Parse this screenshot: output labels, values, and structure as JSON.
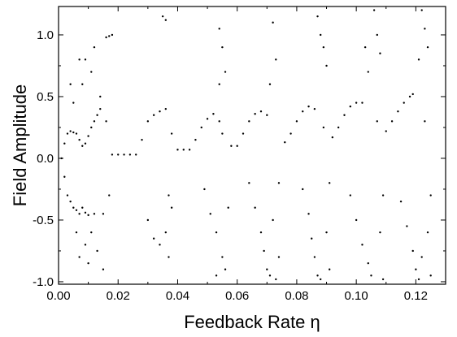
{
  "chart_data": {
    "type": "scatter",
    "title": "",
    "xlabel": "Feedback Rate η",
    "ylabel": "Field Amplitude",
    "xlim": [
      0.0,
      0.13
    ],
    "ylim": [
      -1.02,
      1.23
    ],
    "x_ticks": [
      "0.00",
      "0.02",
      "0.04",
      "0.06",
      "0.08",
      "0.10",
      "0.12"
    ],
    "x_tick_values": [
      0.0,
      0.02,
      0.04,
      0.06,
      0.08,
      0.1,
      0.12
    ],
    "y_ticks": [
      "-1.0",
      "-0.5",
      "0.0",
      "0.5",
      "1.0"
    ],
    "y_tick_values": [
      -1.0,
      -0.5,
      0.0,
      0.5,
      1.0
    ],
    "grid": false,
    "legend": "none",
    "marker_color": "#000000",
    "series": [
      {
        "points": [
          [
            0.001,
            0.0
          ],
          [
            0.002,
            0.12
          ],
          [
            0.002,
            -0.15
          ],
          [
            0.003,
            0.2
          ],
          [
            0.003,
            -0.3
          ],
          [
            0.004,
            0.22
          ],
          [
            0.004,
            -0.35
          ],
          [
            0.005,
            0.21
          ],
          [
            0.005,
            -0.4
          ],
          [
            0.006,
            0.2
          ],
          [
            0.006,
            -0.42
          ],
          [
            0.007,
            0.15
          ],
          [
            0.007,
            -0.45
          ],
          [
            0.008,
            0.1
          ],
          [
            0.008,
            -0.4
          ],
          [
            0.009,
            0.12
          ],
          [
            0.009,
            -0.44
          ],
          [
            0.01,
            0.18
          ],
          [
            0.01,
            -0.46
          ],
          [
            0.011,
            0.25
          ],
          [
            0.012,
            0.3
          ],
          [
            0.012,
            -0.45
          ],
          [
            0.013,
            0.35
          ],
          [
            0.014,
            0.4
          ],
          [
            0.015,
            -0.45
          ],
          [
            0.016,
            0.98
          ],
          [
            0.017,
            0.99
          ],
          [
            0.018,
            1.0
          ],
          [
            0.008,
            0.6
          ],
          [
            0.009,
            0.8
          ],
          [
            0.009,
            -0.7
          ],
          [
            0.01,
            -0.85
          ],
          [
            0.011,
            0.7
          ],
          [
            0.011,
            -0.6
          ],
          [
            0.012,
            0.9
          ],
          [
            0.013,
            -0.75
          ],
          [
            0.014,
            0.5
          ],
          [
            0.015,
            -0.9
          ],
          [
            0.016,
            0.3
          ],
          [
            0.017,
            -0.3
          ],
          [
            0.004,
            0.6
          ],
          [
            0.005,
            0.45
          ],
          [
            0.006,
            -0.6
          ],
          [
            0.007,
            0.8
          ],
          [
            0.007,
            -0.8
          ],
          [
            0.018,
            0.03
          ],
          [
            0.02,
            0.03
          ],
          [
            0.022,
            0.03
          ],
          [
            0.024,
            0.03
          ],
          [
            0.026,
            0.03
          ],
          [
            0.028,
            0.15
          ],
          [
            0.03,
            0.3
          ],
          [
            0.032,
            0.35
          ],
          [
            0.034,
            0.38
          ],
          [
            0.036,
            0.4
          ],
          [
            0.03,
            -0.5
          ],
          [
            0.032,
            -0.65
          ],
          [
            0.034,
            -0.7
          ],
          [
            0.036,
            -0.6
          ],
          [
            0.037,
            -0.8
          ],
          [
            0.035,
            1.15
          ],
          [
            0.036,
            1.12
          ],
          [
            0.038,
            -0.4
          ],
          [
            0.038,
            0.2
          ],
          [
            0.037,
            -0.3
          ],
          [
            0.04,
            0.07
          ],
          [
            0.042,
            0.07
          ],
          [
            0.044,
            0.07
          ],
          [
            0.046,
            0.15
          ],
          [
            0.048,
            0.25
          ],
          [
            0.05,
            0.32
          ],
          [
            0.052,
            0.36
          ],
          [
            0.054,
            0.3
          ],
          [
            0.049,
            -0.25
          ],
          [
            0.051,
            -0.45
          ],
          [
            0.053,
            -0.6
          ],
          [
            0.055,
            -0.8
          ],
          [
            0.054,
            1.05
          ],
          [
            0.055,
            0.9
          ],
          [
            0.056,
            0.7
          ],
          [
            0.056,
            -0.9
          ],
          [
            0.057,
            -0.4
          ],
          [
            0.055,
            0.2
          ],
          [
            0.053,
            -0.95
          ],
          [
            0.054,
            0.6
          ],
          [
            0.058,
            0.1
          ],
          [
            0.06,
            0.1
          ],
          [
            0.062,
            0.2
          ],
          [
            0.064,
            0.3
          ],
          [
            0.066,
            0.36
          ],
          [
            0.068,
            0.38
          ],
          [
            0.07,
            0.35
          ],
          [
            0.064,
            -0.2
          ],
          [
            0.066,
            -0.4
          ],
          [
            0.068,
            -0.6
          ],
          [
            0.069,
            -0.75
          ],
          [
            0.071,
            -0.95
          ],
          [
            0.072,
            1.1
          ],
          [
            0.073,
            0.8
          ],
          [
            0.074,
            -0.2
          ],
          [
            0.074,
            -0.8
          ],
          [
            0.072,
            -0.5
          ],
          [
            0.073,
            -0.98
          ],
          [
            0.071,
            0.6
          ],
          [
            0.07,
            -0.9
          ],
          [
            0.076,
            0.13
          ],
          [
            0.078,
            0.2
          ],
          [
            0.08,
            0.3
          ],
          [
            0.082,
            0.38
          ],
          [
            0.084,
            0.42
          ],
          [
            0.086,
            0.4
          ],
          [
            0.082,
            -0.25
          ],
          [
            0.084,
            -0.45
          ],
          [
            0.085,
            -0.65
          ],
          [
            0.086,
            -0.8
          ],
          [
            0.087,
            -0.95
          ],
          [
            0.088,
            1.0
          ],
          [
            0.089,
            0.9
          ],
          [
            0.09,
            0.75
          ],
          [
            0.091,
            -0.9
          ],
          [
            0.09,
            -0.6
          ],
          [
            0.089,
            0.25
          ],
          [
            0.087,
            1.15
          ],
          [
            0.088,
            -0.98
          ],
          [
            0.091,
            -0.2
          ],
          [
            0.092,
            0.17
          ],
          [
            0.094,
            0.25
          ],
          [
            0.096,
            0.35
          ],
          [
            0.098,
            0.42
          ],
          [
            0.1,
            0.45
          ],
          [
            0.102,
            0.45
          ],
          [
            0.098,
            -0.3
          ],
          [
            0.1,
            -0.5
          ],
          [
            0.102,
            -0.7
          ],
          [
            0.104,
            -0.85
          ],
          [
            0.105,
            -0.95
          ],
          [
            0.106,
            1.2
          ],
          [
            0.107,
            1.0
          ],
          [
            0.108,
            0.85
          ],
          [
            0.109,
            -0.98
          ],
          [
            0.108,
            -0.6
          ],
          [
            0.107,
            0.3
          ],
          [
            0.103,
            0.9
          ],
          [
            0.104,
            0.7
          ],
          [
            0.109,
            -0.3
          ],
          [
            0.11,
            0.22
          ],
          [
            0.112,
            0.3
          ],
          [
            0.114,
            0.38
          ],
          [
            0.116,
            0.45
          ],
          [
            0.118,
            0.5
          ],
          [
            0.119,
            0.52
          ],
          [
            0.115,
            -0.35
          ],
          [
            0.117,
            -0.55
          ],
          [
            0.119,
            -0.75
          ],
          [
            0.12,
            -0.9
          ],
          [
            0.121,
            -0.98
          ],
          [
            0.122,
            1.2
          ],
          [
            0.123,
            1.05
          ],
          [
            0.124,
            0.9
          ],
          [
            0.125,
            -0.95
          ],
          [
            0.124,
            -0.6
          ],
          [
            0.123,
            0.3
          ],
          [
            0.121,
            0.8
          ],
          [
            0.125,
            -0.3
          ],
          [
            0.122,
            -0.8
          ]
        ]
      }
    ]
  }
}
